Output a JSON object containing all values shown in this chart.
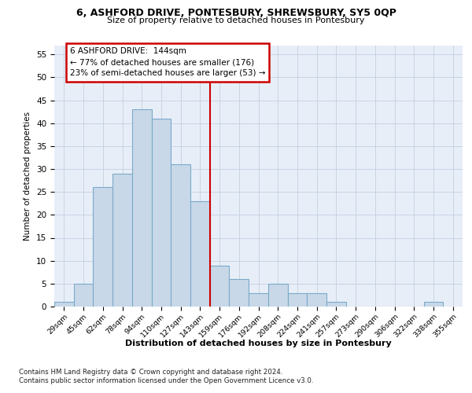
{
  "title_line1": "6, ASHFORD DRIVE, PONTESBURY, SHREWSBURY, SY5 0QP",
  "title_line2": "Size of property relative to detached houses in Pontesbury",
  "xlabel": "Distribution of detached houses by size in Pontesbury",
  "ylabel": "Number of detached properties",
  "bar_labels": [
    "29sqm",
    "45sqm",
    "62sqm",
    "78sqm",
    "94sqm",
    "110sqm",
    "127sqm",
    "143sqm",
    "159sqm",
    "176sqm",
    "192sqm",
    "208sqm",
    "224sqm",
    "241sqm",
    "257sqm",
    "273sqm",
    "290sqm",
    "306sqm",
    "322sqm",
    "338sqm",
    "355sqm"
  ],
  "bar_heights": [
    1,
    5,
    26,
    29,
    43,
    41,
    31,
    23,
    9,
    6,
    3,
    5,
    3,
    3,
    1,
    0,
    0,
    0,
    0,
    1,
    0
  ],
  "bar_color": "#c8d8e8",
  "bar_edge_color": "#7aaac8",
  "grid_color": "#c8d4e4",
  "background_color": "#e8eef8",
  "vline_color": "#cc0000",
  "annotation_text": "6 ASHFORD DRIVE:  144sqm\n← 77% of detached houses are smaller (176)\n23% of semi-detached houses are larger (53) →",
  "annotation_box_color": "#ffffff",
  "annotation_box_edge": "#cc0000",
  "ylim": [
    0,
    57
  ],
  "yticks": [
    0,
    5,
    10,
    15,
    20,
    25,
    30,
    35,
    40,
    45,
    50,
    55
  ],
  "footer_line1": "Contains HM Land Registry data © Crown copyright and database right 2024.",
  "footer_line2": "Contains public sector information licensed under the Open Government Licence v3.0."
}
